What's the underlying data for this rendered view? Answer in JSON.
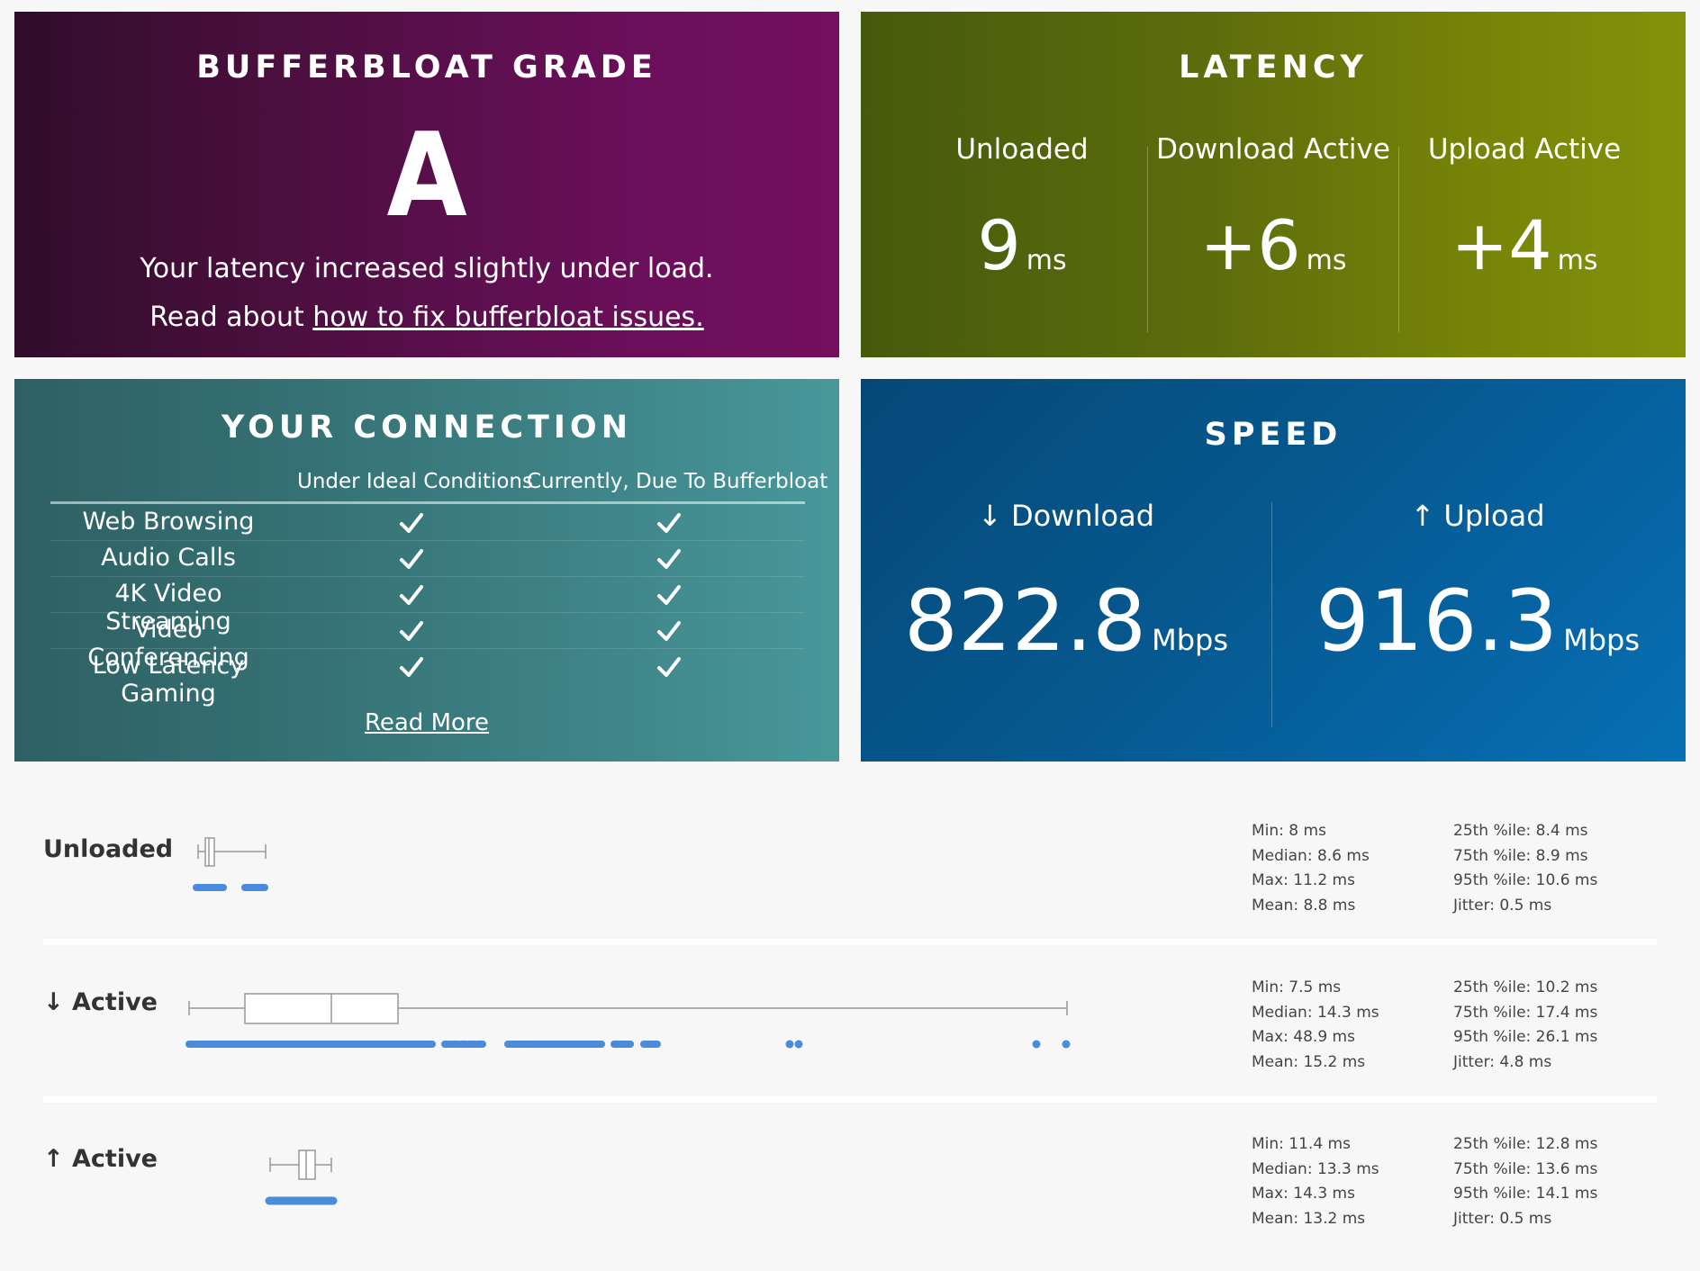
{
  "grade": {
    "title": "BUFFERBLOAT GRADE",
    "letter": "A",
    "message": "Your latency increased slightly under load.",
    "read_prefix": "Read about",
    "read_link": "how to fix bufferbloat issues."
  },
  "latency": {
    "title": "LATENCY",
    "columns": [
      {
        "label": "Unloaded",
        "value": "9",
        "unit": "ms"
      },
      {
        "label": "Download Active",
        "value": "+6",
        "unit": "ms"
      },
      {
        "label": "Upload Active",
        "value": "+4",
        "unit": "ms"
      }
    ]
  },
  "connection": {
    "title": "YOUR CONNECTION",
    "col_ideal": "Under Ideal Conditions",
    "col_current": "Currently, Due To Bufferbloat",
    "rows": [
      {
        "label": "Web Browsing",
        "ideal": true,
        "current": true
      },
      {
        "label": "Audio Calls",
        "ideal": true,
        "current": true
      },
      {
        "label": "4K Video Streaming",
        "ideal": true,
        "current": true
      },
      {
        "label": "Video Conferencing",
        "ideal": true,
        "current": true
      },
      {
        "label": "Low Latency Gaming",
        "ideal": true,
        "current": true
      }
    ],
    "read_more": "Read More"
  },
  "speed": {
    "title": "SPEED",
    "download": {
      "label": "↓ Download",
      "value": "822.8",
      "unit": "Mbps"
    },
    "upload": {
      "label": "↑ Upload",
      "value": "916.3",
      "unit": "Mbps"
    }
  },
  "latency_details": [
    {
      "title": "Unloaded",
      "min": "Min: 8 ms",
      "median": "Median: 8.6 ms",
      "max": "Max: 11.2 ms",
      "mean": "Mean: 8.8 ms",
      "p25": "25th %ile: 8.4 ms",
      "p75": "75th %ile: 8.9 ms",
      "p95": "95th %ile: 10.6 ms",
      "jitter": "Jitter: 0.5 ms"
    },
    {
      "title": "↓ Active",
      "min": "Min: 7.5 ms",
      "median": "Median: 14.3 ms",
      "max": "Max: 48.9 ms",
      "mean": "Mean: 15.2 ms",
      "p25": "25th %ile: 10.2 ms",
      "p75": "75th %ile: 17.4 ms",
      "p95": "95th %ile: 26.1 ms",
      "jitter": "Jitter: 4.8 ms"
    },
    {
      "title": "↑ Active",
      "min": "Min: 11.4 ms",
      "median": "Median: 13.3 ms",
      "max": "Max: 14.3 ms",
      "mean": "Mean: 13.2 ms",
      "p25": "25th %ile: 12.8 ms",
      "p75": "75th %ile: 13.6 ms",
      "p95": "95th %ile: 14.1 ms",
      "jitter": "Jitter: 0.5 ms"
    }
  ],
  "colors": {
    "grade_bg": "#5a0e4c",
    "latency_bg": "#6a7a0a",
    "connection_bg": "#3a7b7e",
    "speed_bg": "#065e9c",
    "dot_color": "#4a8bdc"
  }
}
